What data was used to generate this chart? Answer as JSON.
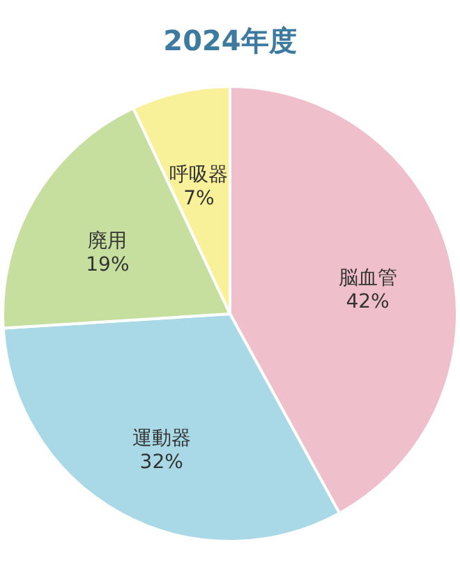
{
  "chart_data": {
    "type": "pie",
    "title": "2024年度",
    "categories": [
      "脳血管",
      "運動器",
      "廃用",
      "呼吸器"
    ],
    "values": [
      42,
      32,
      19,
      7
    ],
    "value_labels": [
      "42%",
      "32%",
      "19%",
      "7%"
    ],
    "colors": [
      "#f0bfcc",
      "#a9d9e6",
      "#c6df9f",
      "#f8f19a"
    ],
    "legend": false
  }
}
